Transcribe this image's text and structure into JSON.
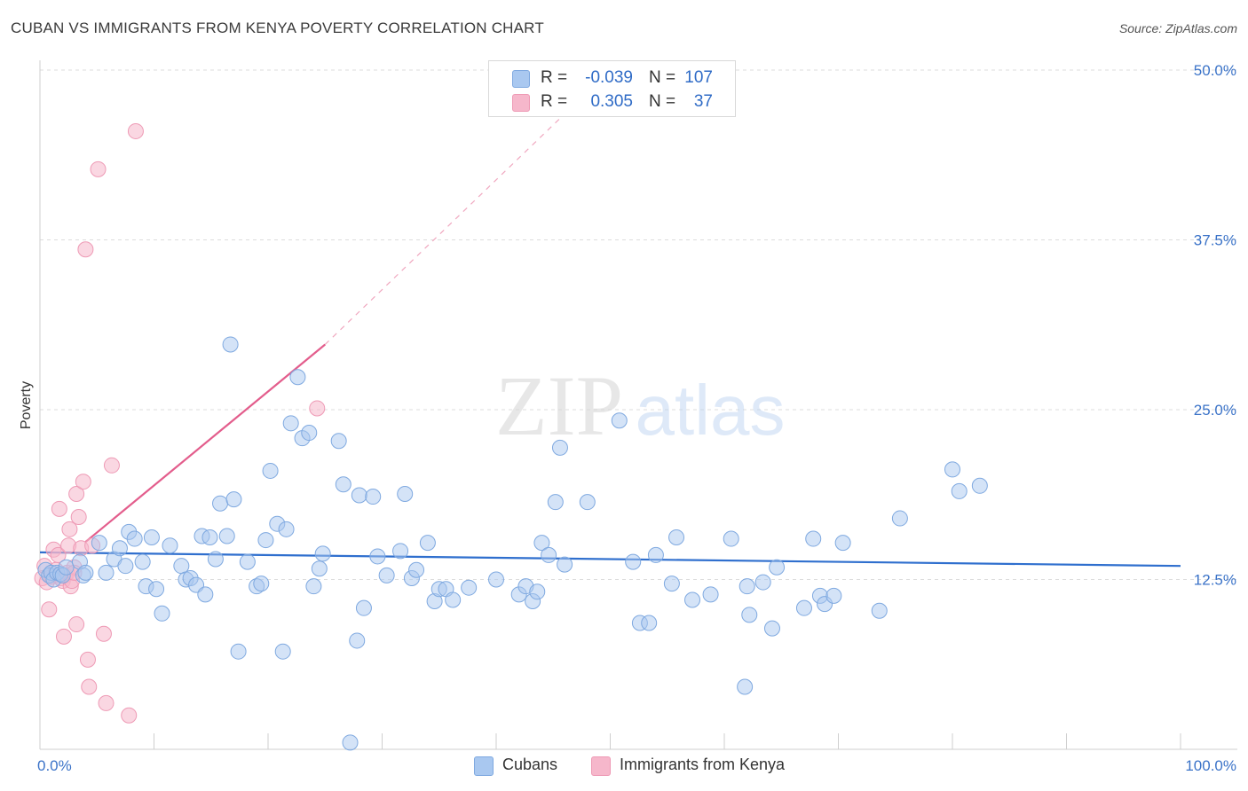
{
  "header": {
    "title": "CUBAN VS IMMIGRANTS FROM KENYA POVERTY CORRELATION CHART",
    "source": "Source: ZipAtlas.com"
  },
  "watermark": {
    "zip": "ZIP",
    "atlas": "atlas"
  },
  "legend": {
    "rows": [
      {
        "r_label": "R =",
        "r_value": "-0.039",
        "n_label": "N =",
        "n_value": "107",
        "color": "#a9c8f0"
      },
      {
        "r_label": "R =",
        "r_value": "0.305",
        "n_label": "N =",
        "n_value": "37",
        "color": "#f6b7cb"
      }
    ]
  },
  "bottom_legend": [
    {
      "label": "Cubans",
      "color": "#a9c8f0"
    },
    {
      "label": "Immigrants from Kenya",
      "color": "#f6b7cb"
    }
  ],
  "colors": {
    "cubans_fill": "#a9c8f0",
    "cubans_stroke": "#7fa9e0",
    "cubans_line": "#2f6fce",
    "kenya_fill": "#f6b7cb",
    "kenya_stroke": "#ee9ab5",
    "kenya_line": "#e35d8c",
    "axis_text": "#3b73c8",
    "grid": "#dddddd"
  },
  "chart_data": {
    "type": "scatter",
    "title": "CUBAN VS IMMIGRANTS FROM KENYA POVERTY CORRELATION CHART",
    "xlabel": "",
    "ylabel": "Poverty",
    "xlim": [
      0,
      100
    ],
    "ylim": [
      0,
      50
    ],
    "y_ticks": [
      {
        "value": 12.5,
        "label": "12.5%"
      },
      {
        "value": 25,
        "label": "25.0%"
      },
      {
        "value": 37.5,
        "label": "37.5%"
      },
      {
        "value": 50,
        "label": "50.0%"
      }
    ],
    "x_ticks": [
      {
        "value": 0,
        "label": "0.0%"
      },
      {
        "value": 100,
        "label": "100.0%"
      }
    ],
    "grid": true,
    "legend_position": "top-center",
    "series": [
      {
        "name": "Cubans",
        "r": -0.039,
        "n": 107,
        "trend": {
          "x": [
            0,
            100
          ],
          "y": [
            14.5,
            13.5
          ]
        },
        "points": [
          [
            0.5,
            13.2
          ],
          [
            0.8,
            12.8
          ],
          [
            1.0,
            13.0
          ],
          [
            1.2,
            12.5
          ],
          [
            1.5,
            13.0
          ],
          [
            1.8,
            12.9
          ],
          [
            2.0,
            12.8
          ],
          [
            2.3,
            13.4
          ],
          [
            3.5,
            13.8
          ],
          [
            3.8,
            12.8
          ],
          [
            4.0,
            13.0
          ],
          [
            5.2,
            15.2
          ],
          [
            5.8,
            13.0
          ],
          [
            6.5,
            14.0
          ],
          [
            7.0,
            14.8
          ],
          [
            7.5,
            13.5
          ],
          [
            7.8,
            16.0
          ],
          [
            8.3,
            15.5
          ],
          [
            9.0,
            13.8
          ],
          [
            9.3,
            12.0
          ],
          [
            9.8,
            15.6
          ],
          [
            10.2,
            11.8
          ],
          [
            10.7,
            10.0
          ],
          [
            11.4,
            15.0
          ],
          [
            12.4,
            13.5
          ],
          [
            12.8,
            12.5
          ],
          [
            13.2,
            12.6
          ],
          [
            13.7,
            12.1
          ],
          [
            14.2,
            15.7
          ],
          [
            14.5,
            11.4
          ],
          [
            14.9,
            15.6
          ],
          [
            15.4,
            14.0
          ],
          [
            15.8,
            18.1
          ],
          [
            16.4,
            15.7
          ],
          [
            16.7,
            29.8
          ],
          [
            17.0,
            18.4
          ],
          [
            17.4,
            7.2
          ],
          [
            18.2,
            13.8
          ],
          [
            19.0,
            12.0
          ],
          [
            19.4,
            12.2
          ],
          [
            19.8,
            15.4
          ],
          [
            20.2,
            20.5
          ],
          [
            20.8,
            16.6
          ],
          [
            21.3,
            7.2
          ],
          [
            21.6,
            16.2
          ],
          [
            22.0,
            24.0
          ],
          [
            23.0,
            22.9
          ],
          [
            23.6,
            23.3
          ],
          [
            22.6,
            27.4
          ],
          [
            24.0,
            12.0
          ],
          [
            24.5,
            13.3
          ],
          [
            24.8,
            14.4
          ],
          [
            26.2,
            22.7
          ],
          [
            26.6,
            19.5
          ],
          [
            27.2,
            0.5
          ],
          [
            27.8,
            8.0
          ],
          [
            28.0,
            18.7
          ],
          [
            28.4,
            10.4
          ],
          [
            29.2,
            18.6
          ],
          [
            29.6,
            14.2
          ],
          [
            30.4,
            12.8
          ],
          [
            31.6,
            14.6
          ],
          [
            32.0,
            18.8
          ],
          [
            32.6,
            12.6
          ],
          [
            33.0,
            13.2
          ],
          [
            34.0,
            15.2
          ],
          [
            34.6,
            10.9
          ],
          [
            35.0,
            11.8
          ],
          [
            35.6,
            11.8
          ],
          [
            36.2,
            11.0
          ],
          [
            37.6,
            11.9
          ],
          [
            40.0,
            12.5
          ],
          [
            42.0,
            11.4
          ],
          [
            42.6,
            12.0
          ],
          [
            43.2,
            10.9
          ],
          [
            43.6,
            11.6
          ],
          [
            44.0,
            15.2
          ],
          [
            44.6,
            14.3
          ],
          [
            45.2,
            18.2
          ],
          [
            46.0,
            13.6
          ],
          [
            45.6,
            22.2
          ],
          [
            48.0,
            18.2
          ],
          [
            50.8,
            24.2
          ],
          [
            52.0,
            13.8
          ],
          [
            52.6,
            9.3
          ],
          [
            53.4,
            9.3
          ],
          [
            54.0,
            14.3
          ],
          [
            55.4,
            12.2
          ],
          [
            55.8,
            15.6
          ],
          [
            57.2,
            11.0
          ],
          [
            58.8,
            11.4
          ],
          [
            60.6,
            15.5
          ],
          [
            61.8,
            4.6
          ],
          [
            62.0,
            12.0
          ],
          [
            62.2,
            9.9
          ],
          [
            63.4,
            12.3
          ],
          [
            64.2,
            8.9
          ],
          [
            64.6,
            13.4
          ],
          [
            67.0,
            10.4
          ],
          [
            67.8,
            15.5
          ],
          [
            68.4,
            11.3
          ],
          [
            68.8,
            10.7
          ],
          [
            69.6,
            11.3
          ],
          [
            70.4,
            15.2
          ],
          [
            73.6,
            10.2
          ],
          [
            75.4,
            17.0
          ],
          [
            80.0,
            20.6
          ],
          [
            80.6,
            19.0
          ],
          [
            82.4,
            19.4
          ]
        ]
      },
      {
        "name": "Immigrants from Kenya",
        "r": 0.305,
        "n": 37,
        "trend": {
          "x": [
            0,
            25
          ],
          "y": [
            12.5,
            29.8
          ],
          "dashed_to": [
            50,
            50
          ]
        },
        "points": [
          [
            0.2,
            12.6
          ],
          [
            0.4,
            13.5
          ],
          [
            0.6,
            12.3
          ],
          [
            0.8,
            10.3
          ],
          [
            1.0,
            12.7
          ],
          [
            1.2,
            14.7
          ],
          [
            1.4,
            13.2
          ],
          [
            1.5,
            12.8
          ],
          [
            1.6,
            14.3
          ],
          [
            1.7,
            17.7
          ],
          [
            1.8,
            12.6
          ],
          [
            2.0,
            12.4
          ],
          [
            2.1,
            8.3
          ],
          [
            2.2,
            12.8
          ],
          [
            2.4,
            13.0
          ],
          [
            2.5,
            15.0
          ],
          [
            2.6,
            16.2
          ],
          [
            2.7,
            12.0
          ],
          [
            2.8,
            12.4
          ],
          [
            3.0,
            13.4
          ],
          [
            3.2,
            9.2
          ],
          [
            3.2,
            18.8
          ],
          [
            3.4,
            17.1
          ],
          [
            3.6,
            14.8
          ],
          [
            3.8,
            19.7
          ],
          [
            4.0,
            36.8
          ],
          [
            4.2,
            6.6
          ],
          [
            4.3,
            4.6
          ],
          [
            4.6,
            15.0
          ],
          [
            5.1,
            42.7
          ],
          [
            5.6,
            8.5
          ],
          [
            5.8,
            3.4
          ],
          [
            6.3,
            20.9
          ],
          [
            7.8,
            2.5
          ],
          [
            8.4,
            45.5
          ],
          [
            24.3,
            25.1
          ],
          [
            3.0,
            13.0
          ]
        ]
      }
    ]
  }
}
